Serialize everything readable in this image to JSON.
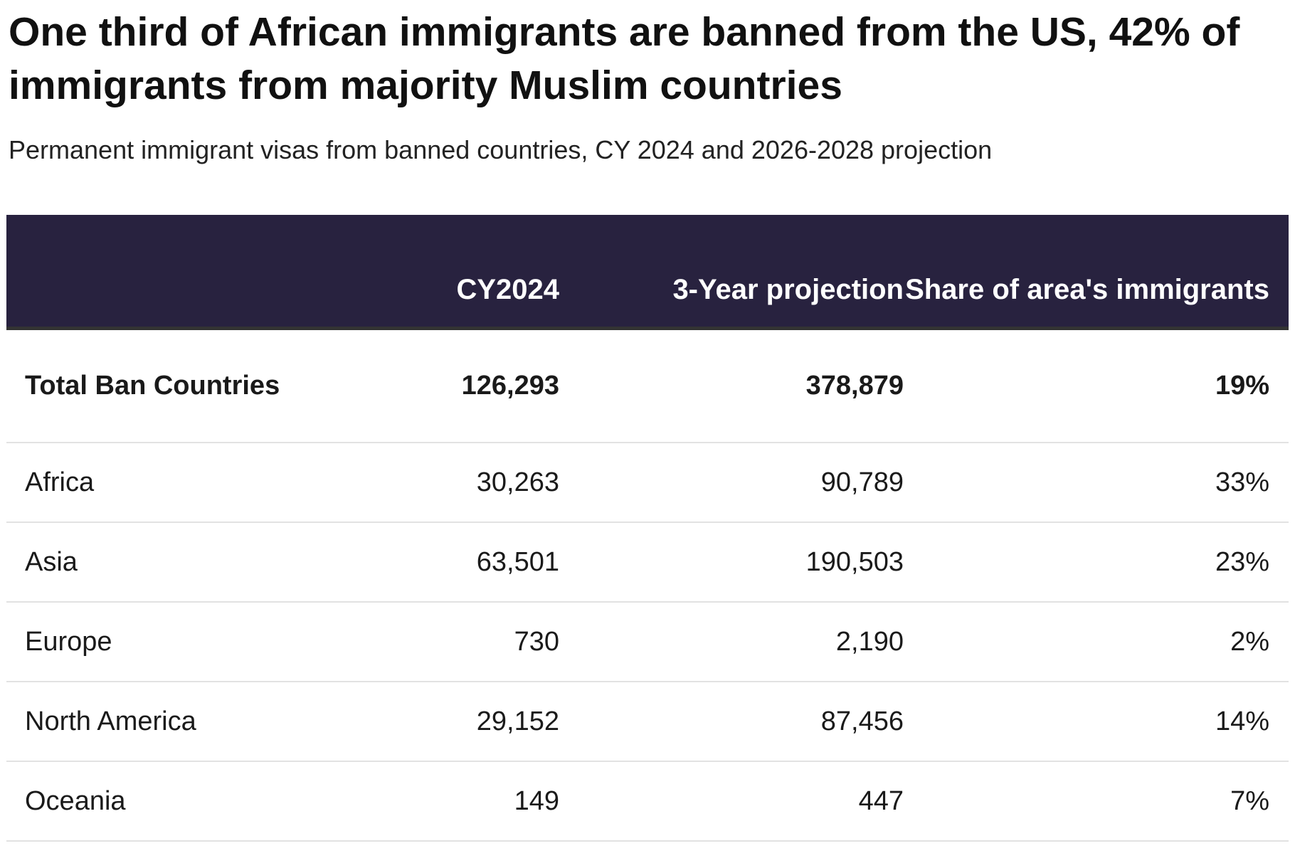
{
  "header": {
    "title": "One third of African immigrants are banned from the US, 42% of immigrants from majority Muslim countries",
    "subtitle": "Permanent immigrant visas from banned countries, CY 2024 and 2026-2028 projection"
  },
  "table": {
    "columns": [
      "CY2024",
      "3-Year projection",
      "Share of area's immigrants"
    ],
    "rows": [
      [
        "Total Ban Countries",
        "126,293",
        "378,879",
        "19%"
      ],
      [
        "Africa",
        "30,263",
        "90,789",
        "33%"
      ],
      [
        "Asia",
        "63,501",
        "190,503",
        "23%"
      ],
      [
        "Europe",
        "730",
        "2,190",
        "2%"
      ],
      [
        "North America",
        "29,152",
        "87,456",
        "14%"
      ],
      [
        "Oceania",
        "149",
        "447",
        "7%"
      ]
    ]
  }
}
